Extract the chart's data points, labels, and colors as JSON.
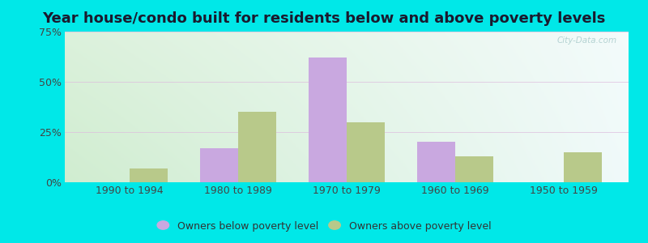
{
  "title": "Year house/condo built for residents below and above poverty levels",
  "categories": [
    "1990 to 1994",
    "1980 to 1989",
    "1970 to 1979",
    "1960 to 1969",
    "1950 to 1959"
  ],
  "below_poverty": [
    0.0,
    17.0,
    62.0,
    20.0,
    0.0
  ],
  "above_poverty": [
    7.0,
    35.0,
    30.0,
    13.0,
    15.0
  ],
  "below_color": "#c9a8e0",
  "above_color": "#b8c98a",
  "ylim": [
    0,
    75
  ],
  "yticks": [
    0,
    25,
    50,
    75
  ],
  "ytick_labels": [
    "0%",
    "25%",
    "50%",
    "75%"
  ],
  "bar_width": 0.35,
  "outer_bg": "#00e8e8",
  "legend_below_label": "Owners below poverty level",
  "legend_above_label": "Owners above poverty level",
  "title_fontsize": 13,
  "tick_fontsize": 9,
  "legend_fontsize": 9,
  "watermark": "City-Data.com"
}
